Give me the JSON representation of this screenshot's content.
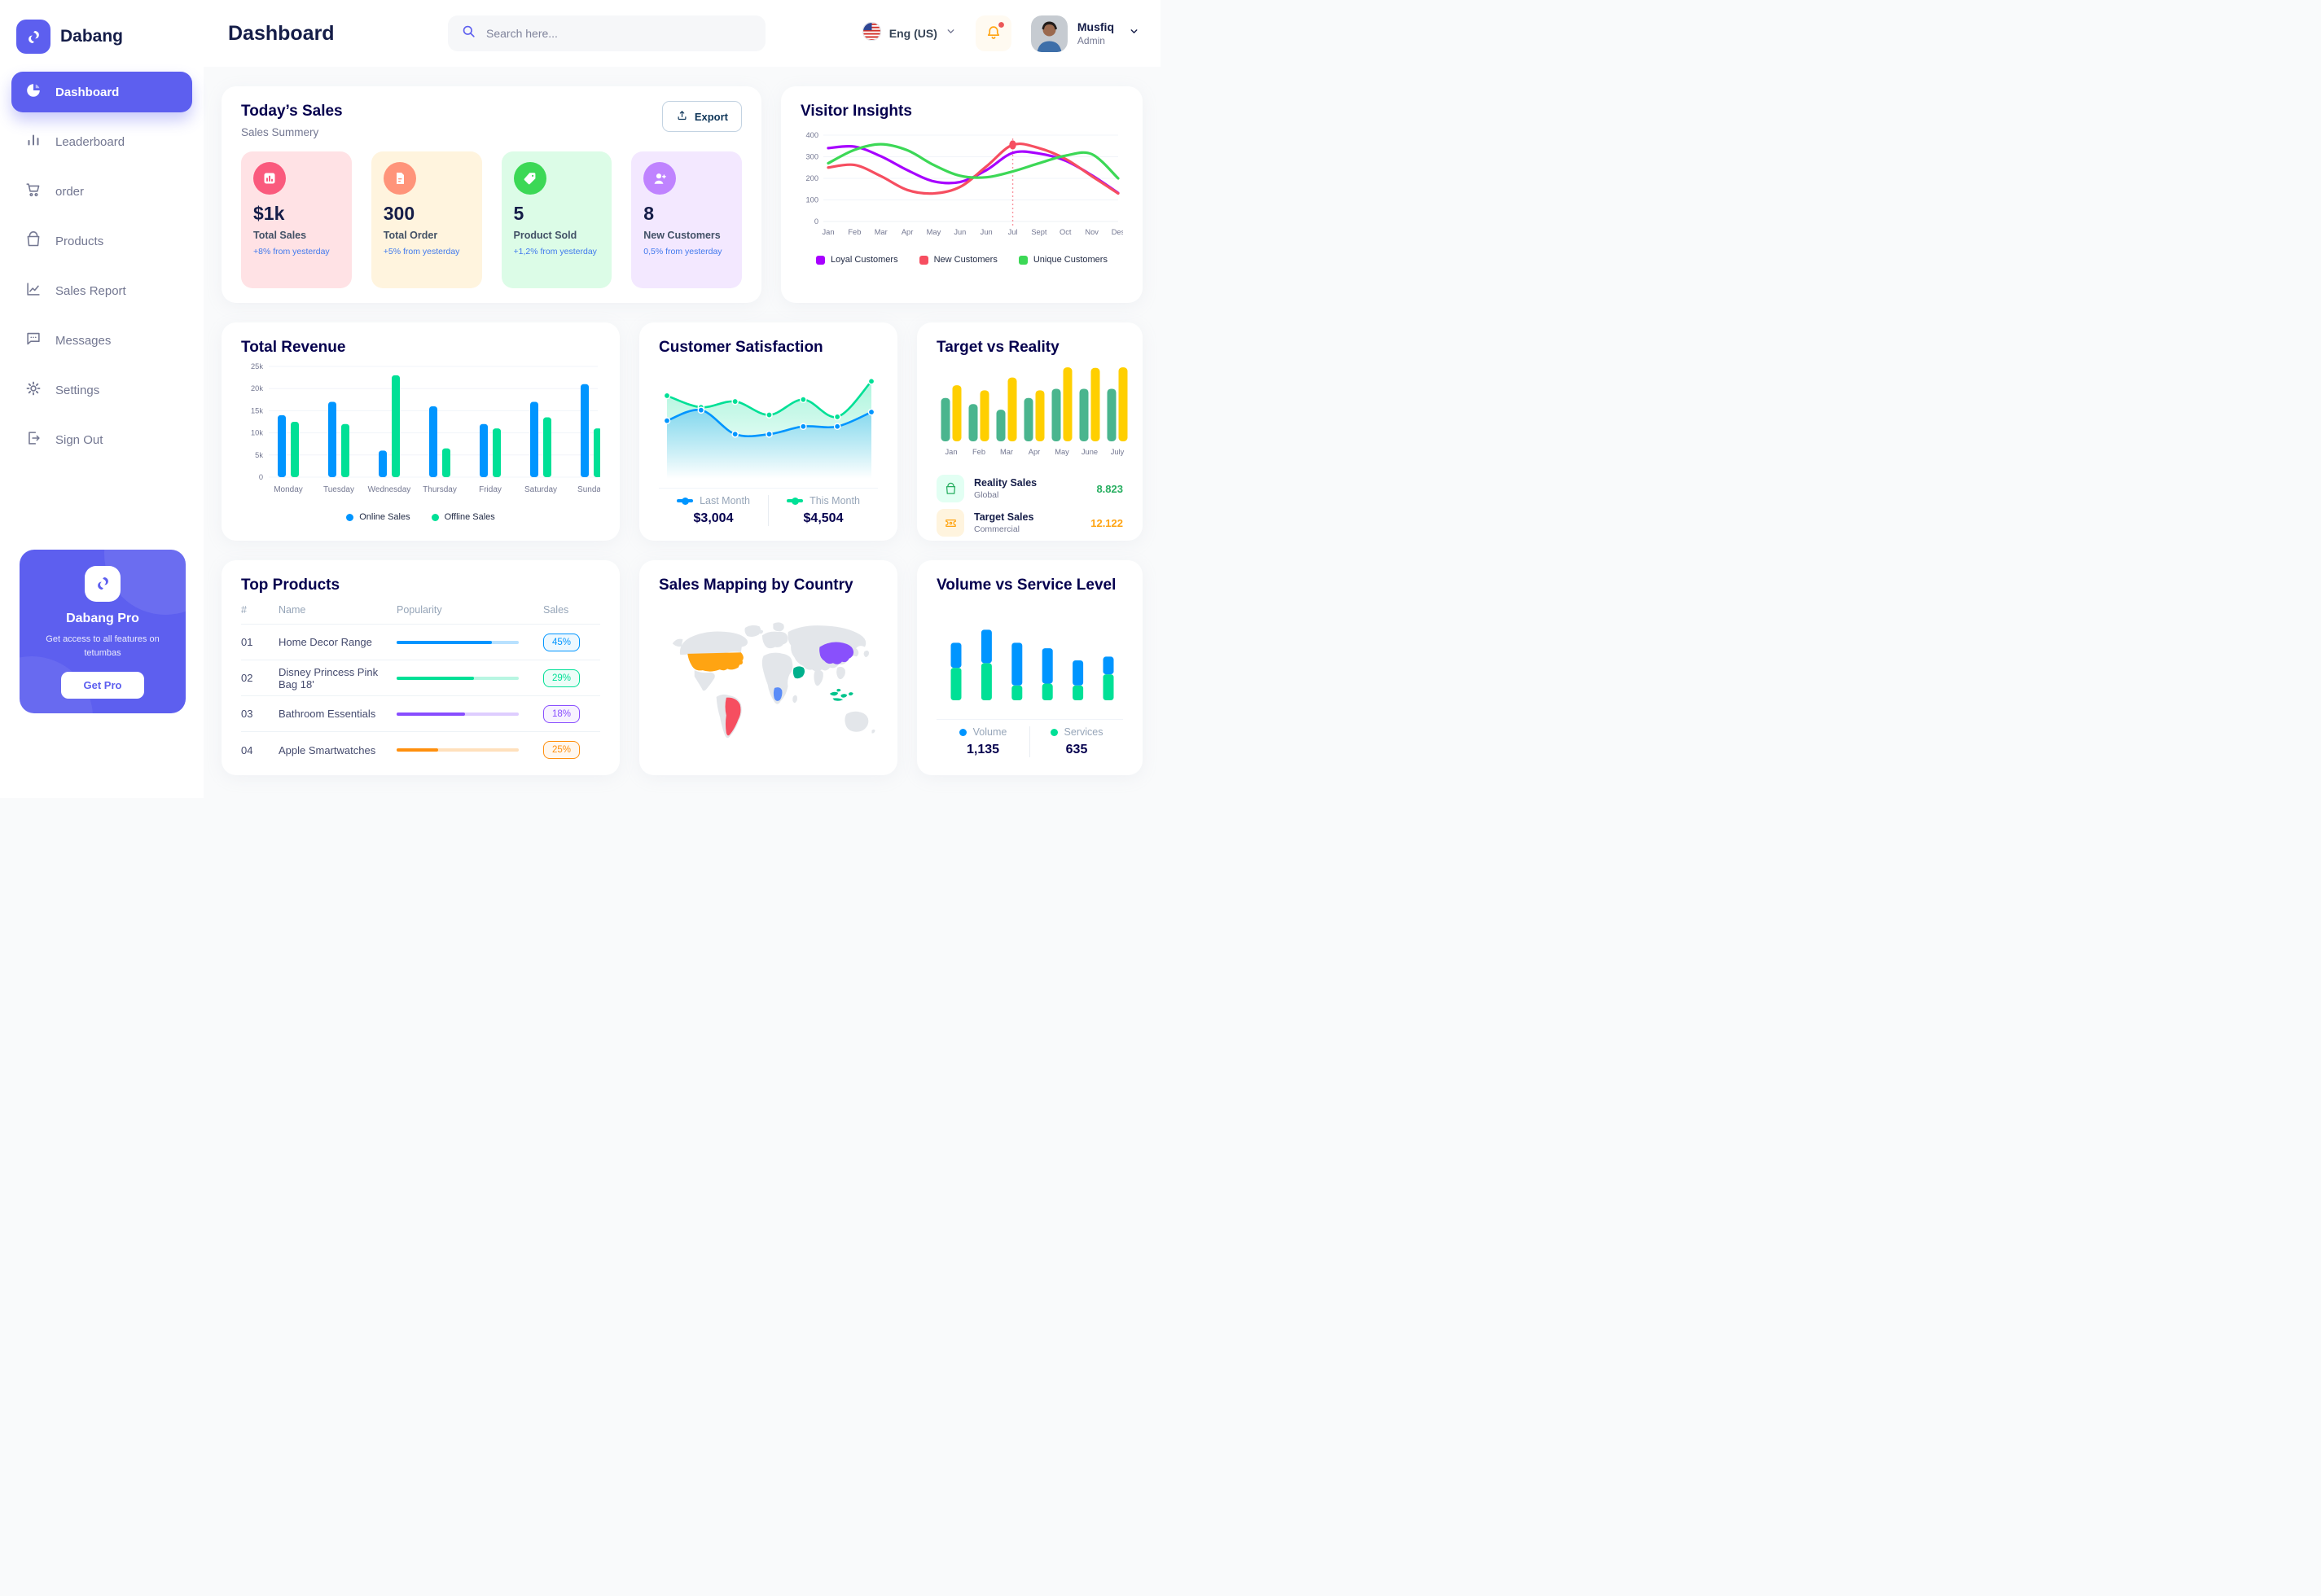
{
  "brand": {
    "name": "Dabang"
  },
  "header": {
    "title": "Dashboard",
    "search": {
      "placeholder": "Search here..."
    },
    "language": {
      "label": "Eng (US)"
    },
    "user": {
      "name": "Musfiq",
      "role": "Admin"
    }
  },
  "sidebar": {
    "items": [
      {
        "label": "Dashboard",
        "icon": "pie-chart-icon",
        "active": true
      },
      {
        "label": "Leaderboard",
        "icon": "bar-chart-icon",
        "active": false
      },
      {
        "label": "order",
        "icon": "cart-icon",
        "active": false
      },
      {
        "label": "Products",
        "icon": "bag-icon",
        "active": false
      },
      {
        "label": "Sales Report",
        "icon": "line-chart-icon",
        "active": false
      },
      {
        "label": "Messages",
        "icon": "chat-icon",
        "active": false
      },
      {
        "label": "Settings",
        "icon": "gear-icon",
        "active": false
      },
      {
        "label": "Sign Out",
        "icon": "sign-out-icon",
        "active": false
      }
    ],
    "pro_card": {
      "title": "Dabang Pro",
      "subtitle": "Get access to all features on tetumbas",
      "button_label": "Get Pro"
    }
  },
  "today_sales": {
    "title": "Today’s Sales",
    "subtitle": "Sales Summery",
    "export_label": "Export",
    "delta_color": "#4079ED",
    "stats": [
      {
        "value": "$1k",
        "label": "Total Sales",
        "delta": "+8% from yesterday",
        "bg": "#FFE2E5",
        "icon_bg": "#FA5A7D",
        "icon": "sales-chart-icon"
      },
      {
        "value": "300",
        "label": "Total Order",
        "delta": "+5% from yesterday",
        "bg": "#FFF4DE",
        "icon_bg": "#FF947A",
        "icon": "order-file-icon"
      },
      {
        "value": "5",
        "label": "Product Sold",
        "delta": "+1,2% from yesterday",
        "bg": "#DCFCE7",
        "icon_bg": "#3CD856",
        "icon": "tag-icon"
      },
      {
        "value": "8",
        "label": "New Customers",
        "delta": "0,5% from yesterday",
        "bg": "#F3E8FF",
        "icon_bg": "#BF83FF",
        "icon": "new-customer-icon"
      }
    ]
  },
  "visitor_insights": {
    "title": "Visitor Insights"
  },
  "total_revenue": {
    "title": "Total Revenue"
  },
  "customer_satisfaction": {
    "title": "Customer Satisfaction"
  },
  "target_vs_reality": {
    "title": "Target vs Reality",
    "legend": [
      {
        "name": "Reality Sales",
        "scope": "Global",
        "value": "8.823",
        "value_color": "#27AE60",
        "tile_bg": "#E2FFF3",
        "icon": "shopping-bag-icon"
      },
      {
        "name": "Target Sales",
        "scope": "Commercial",
        "value": "12.122",
        "value_color": "#FFA412",
        "tile_bg": "#FFF4DE",
        "icon": "ticket-icon"
      }
    ]
  },
  "top_products": {
    "title": "Top Products",
    "columns": [
      "#",
      "Name",
      "Popularity",
      "Sales"
    ],
    "rows": [
      {
        "num": "01",
        "name": "Home Decor Range",
        "pct": "45%",
        "fill": 0.78,
        "color": "#0095FF"
      },
      {
        "num": "02",
        "name": "Disney Princess Pink Bag 18'",
        "pct": "29%",
        "fill": 0.63,
        "color": "#00E096"
      },
      {
        "num": "03",
        "name": "Bathroom Essentials",
        "pct": "18%",
        "fill": 0.56,
        "color": "#884DFF"
      },
      {
        "num": "04",
        "name": "Apple Smartwatches",
        "pct": "25%",
        "fill": 0.34,
        "color": "#FF8F0D"
      }
    ]
  },
  "sales_mapping": {
    "title": "Sales Mapping by Country",
    "countries": [
      {
        "name": "United States",
        "color": "#FFA412"
      },
      {
        "name": "Brazil",
        "color": "#F64E60"
      },
      {
        "name": "DR Congo",
        "color": "#5A8CF8"
      },
      {
        "name": "Saudi Arabia",
        "color": "#00B08C"
      },
      {
        "name": "China",
        "color": "#8950FC"
      },
      {
        "name": "Indonesia",
        "color": "#00C48C"
      }
    ]
  },
  "volume_service": {
    "title": "Volume vs Service Level"
  },
  "chart_data": [
    {
      "id": "visitor_insights",
      "type": "line",
      "title": "Visitor Insights",
      "x": [
        "Jan",
        "Feb",
        "Mar",
        "Apr",
        "May",
        "Jun",
        "Jun",
        "Jul",
        "Sept",
        "Oct",
        "Nov",
        "Des"
      ],
      "ylim": [
        0,
        400
      ],
      "yticks": [
        0,
        100,
        200,
        300,
        400
      ],
      "series": [
        {
          "name": "Loyal Customers",
          "color": "#A700FF",
          "values": [
            340,
            347,
            302,
            238,
            186,
            183,
            238,
            318,
            315,
            282,
            214,
            132
          ]
        },
        {
          "name": "New Customers",
          "color": "#F64E60",
          "values": [
            250,
            262,
            210,
            146,
            130,
            160,
            255,
            355,
            340,
            290,
            210,
            130
          ]
        },
        {
          "name": "Unique Customers",
          "color": "#3CD856",
          "values": [
            270,
            332,
            358,
            330,
            262,
            212,
            205,
            232,
            270,
            305,
            312,
            200
          ]
        }
      ],
      "annotation": {
        "x_index": 7,
        "x_label": "Jul",
        "series": "New Customers",
        "value": 355
      }
    },
    {
      "id": "total_revenue",
      "type": "bar",
      "title": "Total Revenue",
      "categories": [
        "Monday",
        "Tuesday",
        "Wednesday",
        "Thursday",
        "Friday",
        "Saturday",
        "Sunday"
      ],
      "ylim": [
        0,
        25
      ],
      "ytick_labels": [
        "0",
        "5k",
        "10k",
        "15k",
        "20k",
        "25k"
      ],
      "series": [
        {
          "name": "Online Sales",
          "color": "#0095FF",
          "values": [
            14,
            17,
            6,
            16,
            12,
            17,
            21
          ]
        },
        {
          "name": "Offline Sales",
          "color": "#00E096",
          "values": [
            12.5,
            12,
            23,
            6.5,
            11,
            13.5,
            11
          ]
        }
      ]
    },
    {
      "id": "customer_satisfaction",
      "type": "area",
      "title": "Customer Satisfaction",
      "ylim": [
        0,
        100
      ],
      "series": [
        {
          "name": "Last Month",
          "color": "#0095FF",
          "total": "$3,004",
          "values": [
            52,
            63,
            38,
            38,
            46,
            46,
            61
          ]
        },
        {
          "name": "This Month",
          "color": "#00E096",
          "total": "$4,504",
          "values": [
            78,
            66,
            72,
            58,
            74,
            56,
            93
          ]
        }
      ]
    },
    {
      "id": "target_vs_reality",
      "type": "bar",
      "title": "Target vs Reality",
      "categories": [
        "Jan",
        "Feb",
        "Mar",
        "Apr",
        "May",
        "June",
        "July"
      ],
      "ylim": [
        0,
        15
      ],
      "series": [
        {
          "name": "Reality Sales",
          "color": "#4AB58E",
          "values": [
            8.5,
            7.3,
            6.2,
            8.5,
            10.3,
            10.3,
            10.3
          ]
        },
        {
          "name": "Target Sales",
          "color": "#FFCF00",
          "values": [
            11,
            10,
            12.5,
            10,
            14.5,
            14.4,
            14.5
          ]
        }
      ]
    },
    {
      "id": "volume_service",
      "type": "stacked-bar",
      "title": "Volume vs Service Level",
      "ylim": [
        0,
        100
      ],
      "series": [
        {
          "name": "Volume",
          "color": "#0095FF",
          "total": "1,135",
          "values": [
            27,
            36,
            46,
            38,
            27,
            19
          ]
        },
        {
          "name": "Services",
          "color": "#00E096",
          "total": "635",
          "values": [
            35,
            40,
            16,
            18,
            16,
            28
          ]
        }
      ]
    }
  ]
}
